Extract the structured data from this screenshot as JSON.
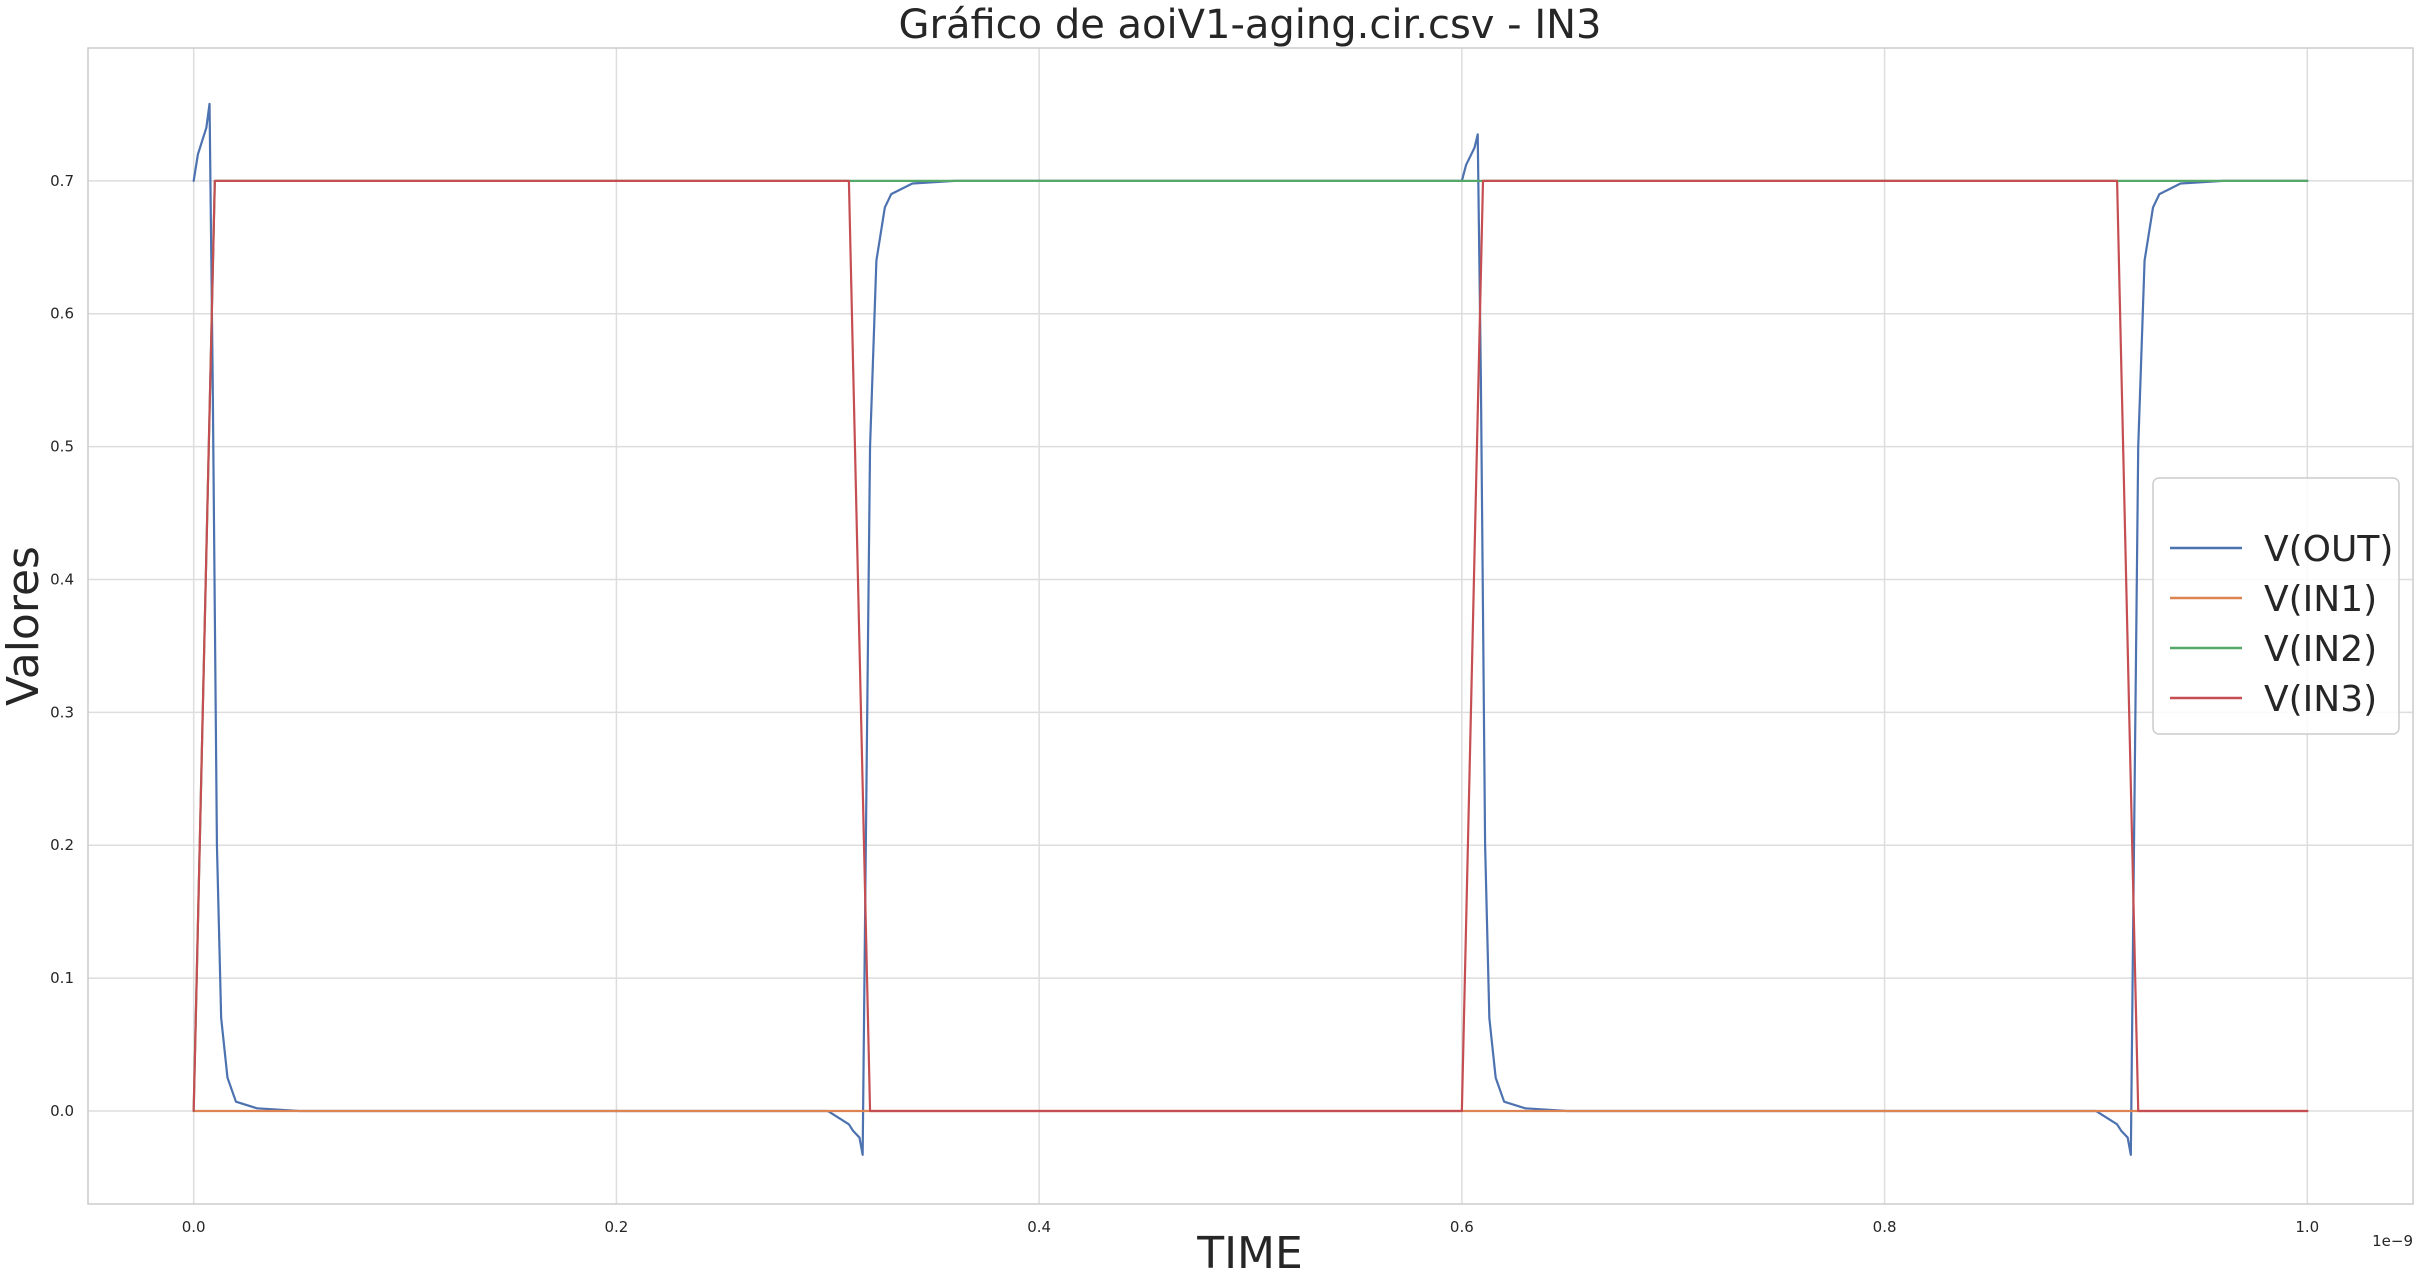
{
  "chart_data": {
    "type": "line",
    "title": "Gráfico de aoiV1-aging.cir.csv - IN3",
    "xlabel": "TIME",
    "ylabel": "Valores",
    "x_offset_label": "1e−9",
    "xlim": [
      -0.05,
      1.05
    ],
    "ylim": [
      -0.07,
      0.8
    ],
    "x_ticks": [
      "0.0",
      "0.2",
      "0.4",
      "0.6",
      "0.8",
      "1.0"
    ],
    "y_ticks": [
      "0.0",
      "0.1",
      "0.2",
      "0.3",
      "0.4",
      "0.5",
      "0.6",
      "0.7"
    ],
    "grid": true,
    "legend_position": "right",
    "series": [
      {
        "name": "V(OUT)",
        "color": "#4c72b0",
        "x": [
          0.0,
          0.002,
          0.006,
          0.0075,
          0.009,
          0.011,
          0.013,
          0.016,
          0.02,
          0.03,
          0.05,
          0.3,
          0.31,
          0.312,
          0.315,
          0.3165,
          0.318,
          0.32,
          0.323,
          0.327,
          0.33,
          0.34,
          0.36,
          0.6,
          0.602,
          0.606,
          0.6075,
          0.609,
          0.611,
          0.613,
          0.616,
          0.62,
          0.63,
          0.65,
          0.9,
          0.91,
          0.912,
          0.915,
          0.9165,
          0.918,
          0.92,
          0.923,
          0.927,
          0.93,
          0.94,
          0.96,
          1.0
        ],
        "y": [
          0.7,
          0.72,
          0.74,
          0.758,
          0.55,
          0.2,
          0.07,
          0.025,
          0.007,
          0.002,
          0.0,
          0.0,
          -0.01,
          -0.015,
          -0.02,
          -0.033,
          0.2,
          0.5,
          0.64,
          0.68,
          0.69,
          0.698,
          0.7,
          0.7,
          0.712,
          0.725,
          0.735,
          0.55,
          0.2,
          0.07,
          0.025,
          0.007,
          0.002,
          0.0,
          0.0,
          -0.01,
          -0.015,
          -0.02,
          -0.033,
          0.2,
          0.5,
          0.64,
          0.68,
          0.69,
          0.698,
          0.7,
          0.7
        ]
      },
      {
        "name": "V(IN1)",
        "color": "#dd8452",
        "x": [
          0.0,
          1.0
        ],
        "y": [
          0.0,
          0.0
        ]
      },
      {
        "name": "V(IN2)",
        "color": "#55a868",
        "x": [
          0.0,
          0.01,
          1.0
        ],
        "y": [
          0.0,
          0.7,
          0.7
        ]
      },
      {
        "name": "V(IN3)",
        "color": "#c44e52",
        "x": [
          0.0,
          0.01,
          0.31,
          0.32,
          0.6,
          0.61,
          0.91,
          0.92,
          1.0
        ],
        "y": [
          0.0,
          0.7,
          0.7,
          0.0,
          0.0,
          0.7,
          0.7,
          0.0,
          0.0
        ]
      }
    ]
  }
}
